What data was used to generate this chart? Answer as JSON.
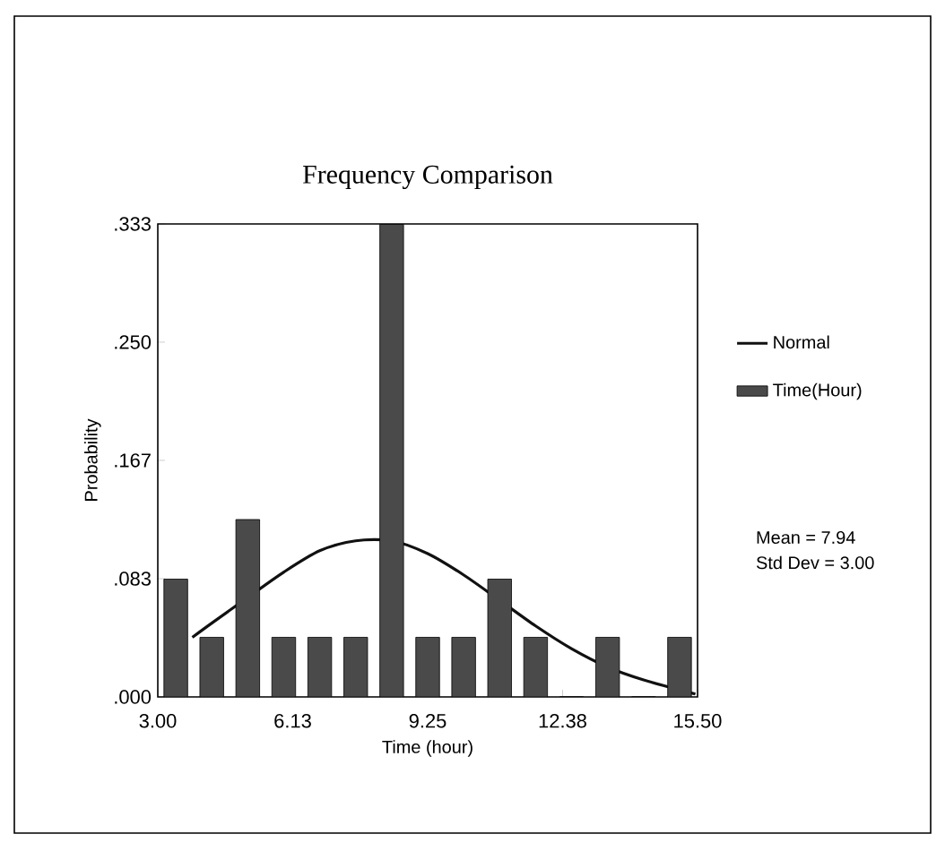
{
  "chart_data": {
    "type": "histogram",
    "title": "Frequency Comparison",
    "xlabel": "Time (hour)",
    "ylabel": "Probability",
    "bins": [
      3.0,
      3.8333,
      4.6667,
      5.5,
      6.3333,
      7.1667,
      8.0,
      8.8333,
      9.6667,
      10.5,
      11.3333,
      12.1667,
      13.0,
      13.8333,
      14.6667,
      15.5
    ],
    "series": [
      {
        "name": "Normal",
        "type": "line",
        "color": "#111111",
        "x": [
          3.8,
          4.25,
          5.08,
          5.92,
          6.75,
          7.58,
          8.42,
          9.25,
          10.08,
          10.92,
          11.75,
          12.58,
          13.42,
          14.25,
          15.45
        ],
        "values": [
          0.042,
          0.052,
          0.07,
          0.088,
          0.103,
          0.11,
          0.11,
          0.101,
          0.086,
          0.068,
          0.05,
          0.034,
          0.021,
          0.012,
          0.002
        ]
      },
      {
        "name": "Time(Hour)",
        "color": "#4a4a4a",
        "values": [
          0.083,
          0.042,
          0.125,
          0.042,
          0.042,
          0.042,
          0.333,
          0.042,
          0.042,
          0.083,
          0.042,
          0,
          0.042,
          0,
          0.042
        ]
      }
    ],
    "annotations": [
      "Mean = 7.94",
      "Std Dev = 3.00"
    ],
    "xlim": [
      3.0,
      15.5
    ],
    "xticks": [
      {
        "value": 3.0,
        "label": "3.00"
      },
      {
        "value": 6.125,
        "label": "6.13"
      },
      {
        "value": 9.25,
        "label": "9.25"
      },
      {
        "value": 12.375,
        "label": "12.38"
      },
      {
        "value": 15.5,
        "label": "15.50"
      }
    ],
    "ylim": [
      0,
      0.3333
    ],
    "yticks": [
      {
        "value": 0,
        "label": ".000"
      },
      {
        "value": 0.0833,
        "label": ".083"
      },
      {
        "value": 0.1667,
        "label": ".167"
      },
      {
        "value": 0.25,
        "label": ".250"
      },
      {
        "value": 0.3333,
        "label": ".333"
      }
    ],
    "grid": false,
    "legend": "right",
    "marker": "none",
    "line_style": "solid"
  }
}
